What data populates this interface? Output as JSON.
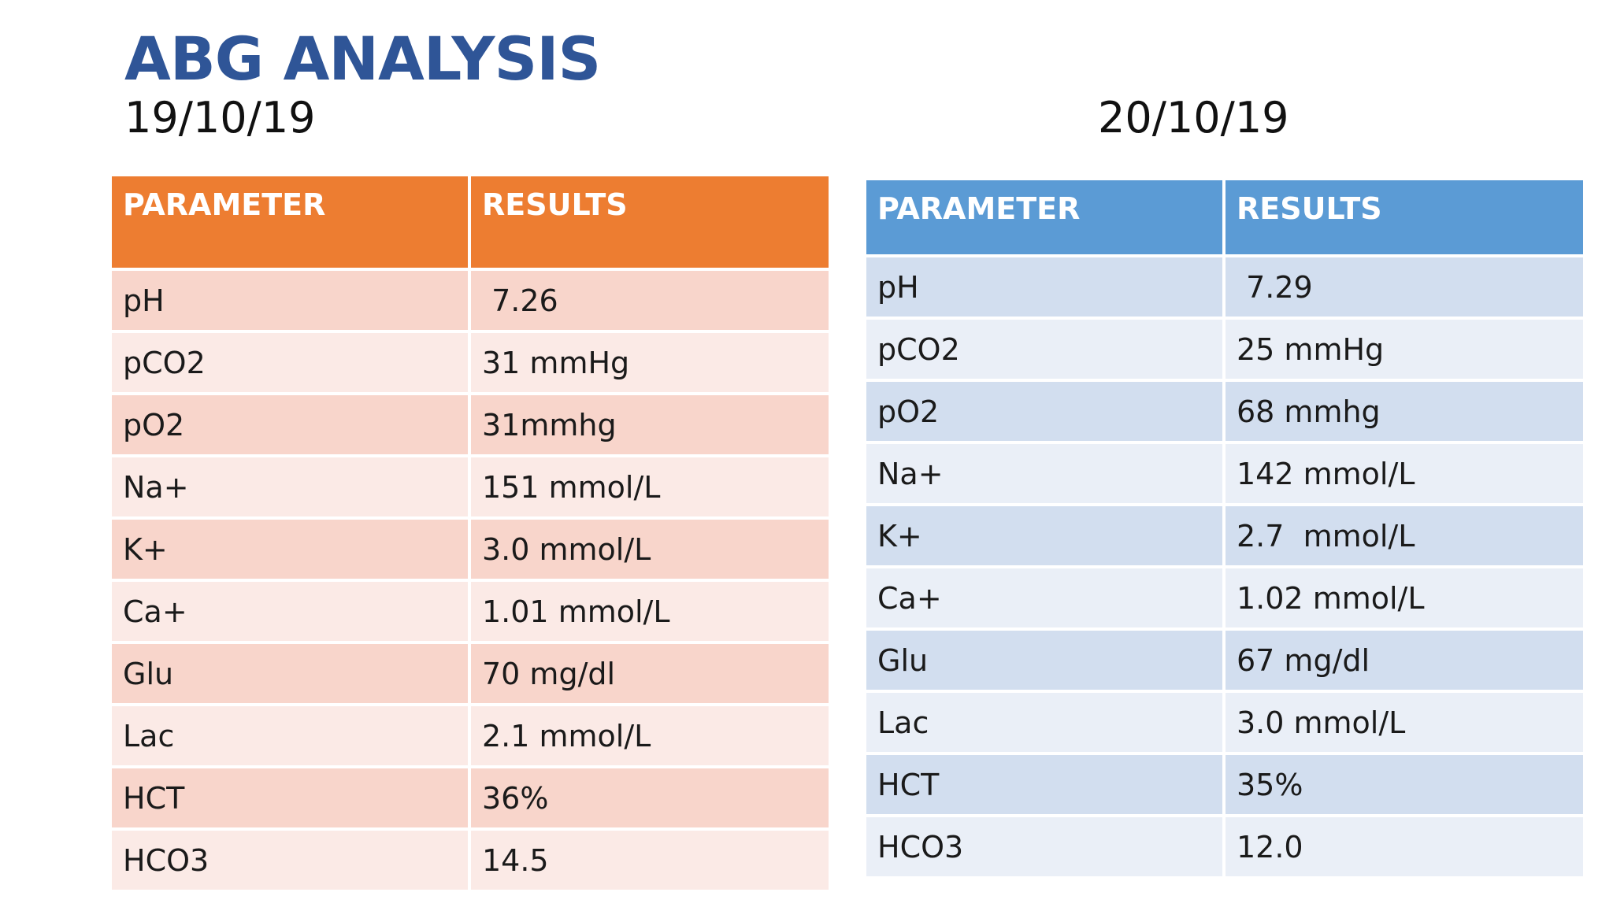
{
  "title": "ABG ANALYSIS",
  "left": {
    "date": "19/10/19",
    "headers": {
      "parameter": "PARAMETER",
      "results": "RESULTS"
    },
    "rows": [
      {
        "parameter": "pH",
        "result": " 7.26"
      },
      {
        "parameter": "pCO2",
        "result": "31 mmHg"
      },
      {
        "parameter": "pO2",
        "result": "31mmhg"
      },
      {
        "parameter": "Na+",
        "result": "151 mmol/L"
      },
      {
        "parameter": "K+",
        "result": "3.0 mmol/L"
      },
      {
        "parameter": "Ca+",
        "result": "1.01 mmol/L"
      },
      {
        "parameter": "Glu",
        "result": "70 mg/dl"
      },
      {
        "parameter": "Lac",
        "result": "2.1 mmol/L"
      },
      {
        "parameter": "HCT",
        "result": "36%"
      },
      {
        "parameter": "HCO3",
        "result": "14.5"
      }
    ]
  },
  "right": {
    "date": "20/10/19",
    "headers": {
      "parameter": "PARAMETER",
      "results": "RESULTS"
    },
    "rows": [
      {
        "parameter": "pH",
        "result": " 7.29"
      },
      {
        "parameter": "pCO2",
        "result": "25 mmHg"
      },
      {
        "parameter": "pO2",
        "result": "68 mmhg"
      },
      {
        "parameter": "Na+",
        "result": "142 mmol/L"
      },
      {
        "parameter": "K+",
        "result": "2.7  mmol/L"
      },
      {
        "parameter": "Ca+",
        "result": "1.02 mmol/L"
      },
      {
        "parameter": "Glu",
        "result": "67 mg/dl"
      },
      {
        "parameter": "Lac",
        "result": "3.0 mmol/L"
      },
      {
        "parameter": "HCT",
        "result": "35%"
      },
      {
        "parameter": "HCO3",
        "result": "12.0"
      }
    ]
  },
  "colors": {
    "title": "#2F5597",
    "left_header": "#ED7D31",
    "left_row_dark": "#F8D5CB",
    "left_row_light": "#FBEAE6",
    "right_header": "#5B9BD5",
    "right_row_dark": "#D2DEEF",
    "right_row_light": "#EAEFF7"
  }
}
